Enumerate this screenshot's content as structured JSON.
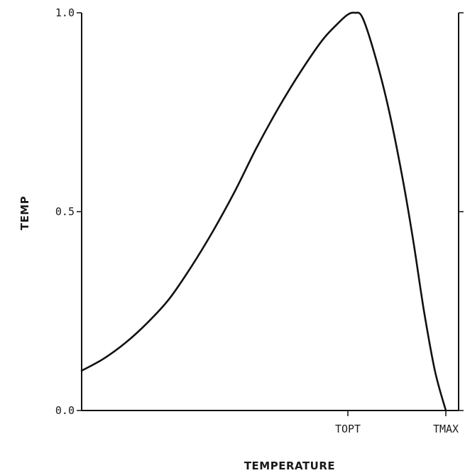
{
  "chart_data": {
    "type": "line",
    "xlabel": "TEMPERATURE",
    "ylabel": "TEMP",
    "ylim": [
      0,
      1
    ],
    "y_ticks": [
      {
        "value": 0.0,
        "label": "0.0"
      },
      {
        "value": 0.5,
        "label": "0.5"
      },
      {
        "value": 1.0,
        "label": "1.0"
      }
    ],
    "x_ticks": [
      {
        "name": "TOPT",
        "label": "TOPT"
      },
      {
        "name": "TMAX",
        "label": "TMAX"
      }
    ],
    "grid": false,
    "series": [
      {
        "points": [
          {
            "x": 0.0,
            "y": 0.1
          },
          {
            "x": 0.06,
            "y": 0.13
          },
          {
            "x": 0.12,
            "y": 0.17
          },
          {
            "x": 0.18,
            "y": 0.22
          },
          {
            "x": 0.24,
            "y": 0.28
          },
          {
            "x": 0.3,
            "y": 0.36
          },
          {
            "x": 0.36,
            "y": 0.45
          },
          {
            "x": 0.42,
            "y": 0.55
          },
          {
            "x": 0.48,
            "y": 0.66
          },
          {
            "x": 0.54,
            "y": 0.76
          },
          {
            "x": 0.6,
            "y": 0.85
          },
          {
            "x": 0.66,
            "y": 0.93
          },
          {
            "x": 0.7,
            "y": 0.97
          },
          {
            "x": 0.73,
            "y": 0.995
          },
          {
            "x": 0.75,
            "y": 1.0
          },
          {
            "x": 0.77,
            "y": 0.99
          },
          {
            "x": 0.8,
            "y": 0.91
          },
          {
            "x": 0.84,
            "y": 0.77
          },
          {
            "x": 0.88,
            "y": 0.59
          },
          {
            "x": 0.91,
            "y": 0.43
          },
          {
            "x": 0.94,
            "y": 0.25
          },
          {
            "x": 0.97,
            "y": 0.1
          },
          {
            "x": 1.0,
            "y": 0.0
          }
        ]
      }
    ]
  }
}
